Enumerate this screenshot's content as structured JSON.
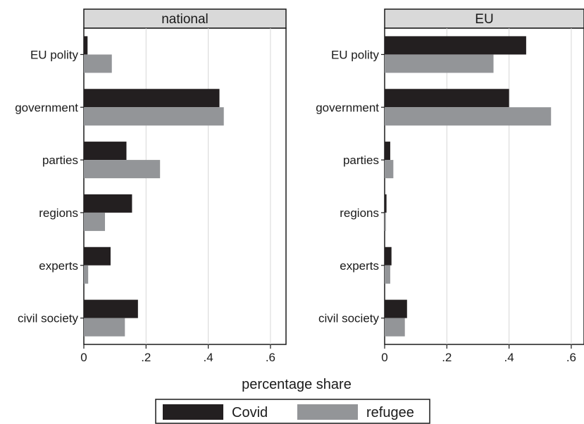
{
  "chart_data": {
    "type": "bar",
    "orientation": "horizontal",
    "xlabel": "percentage share",
    "xlim": [
      0,
      0.65
    ],
    "xticks": [
      0,
      0.2,
      0.4,
      0.6
    ],
    "xtick_labels": [
      "0",
      ".2",
      ".4",
      ".6"
    ],
    "grid": true,
    "legend_position": "bottom",
    "categories": [
      "EU polity",
      "government",
      "parties",
      "regions",
      "experts",
      "civil society"
    ],
    "series_meta": [
      {
        "name": "Covid",
        "color": "#231f20"
      },
      {
        "name": "refugee",
        "color": "#939598"
      }
    ],
    "panels": [
      {
        "title": "national",
        "series": [
          {
            "name": "Covid",
            "values": [
              0.012,
              0.436,
              0.137,
              0.155,
              0.086,
              0.174
            ]
          },
          {
            "name": "refugee",
            "values": [
              0.09,
              0.45,
              0.245,
              0.068,
              0.014,
              0.132
            ]
          }
        ]
      },
      {
        "title": "EU",
        "series": [
          {
            "name": "Covid",
            "values": [
              0.455,
              0.4,
              0.018,
              0.006,
              0.022,
              0.072
            ]
          },
          {
            "name": "refugee",
            "values": [
              0.35,
              0.535,
              0.028,
              0.004,
              0.018,
              0.065
            ]
          }
        ]
      }
    ]
  }
}
